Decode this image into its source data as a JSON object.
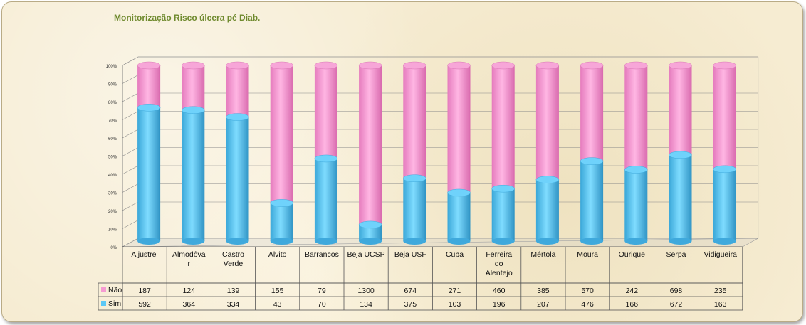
{
  "chart_data": {
    "type": "bar",
    "title": "Monitorização Risco úlcera pé Diab.",
    "stacked": "percent",
    "categories": [
      "Aljustrel",
      "Almodôva\nr",
      "Castro\nVerde",
      "Alvito",
      "Barrancos",
      "Beja UCSP",
      "Beja USF",
      "Cuba",
      "Ferreira\ndo\nAlentejo",
      "Mértola",
      "Moura",
      "Ourique",
      "Serpa",
      "Vidigueira"
    ],
    "series": [
      {
        "name": "Sim",
        "color": "#5cc8f5",
        "values": [
          592,
          364,
          334,
          43,
          70,
          134,
          375,
          103,
          196,
          207,
          476,
          166,
          672,
          163
        ]
      },
      {
        "name": "Não",
        "color": "#f59bd2",
        "values": [
          187,
          124,
          139,
          155,
          79,
          1300,
          674,
          271,
          460,
          385,
          570,
          242,
          698,
          235
        ]
      }
    ],
    "yticks": [
      "0%",
      "10%",
      "20%",
      "30%",
      "40%",
      "50%",
      "60%",
      "70%",
      "80%",
      "90%",
      "100%"
    ],
    "ylim": [
      0,
      100
    ],
    "legend": "data-table"
  }
}
